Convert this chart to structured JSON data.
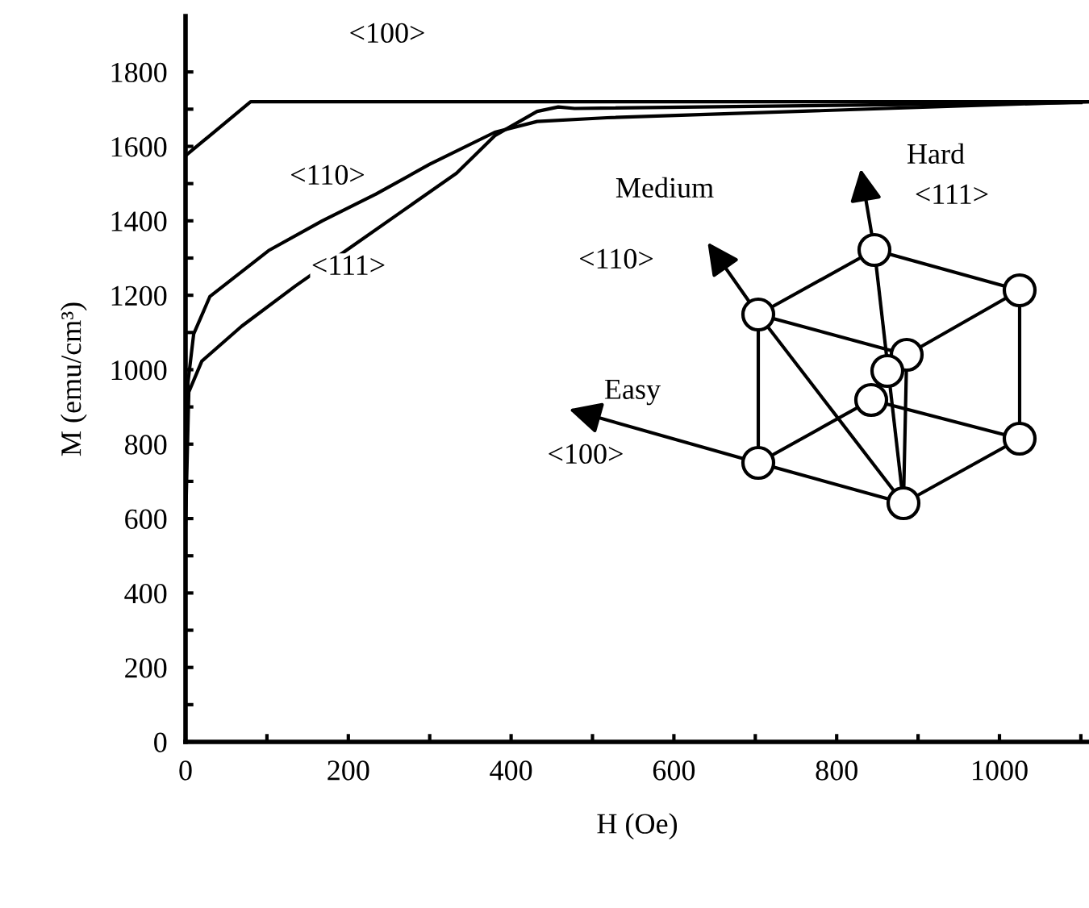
{
  "chart_data": {
    "type": "line",
    "xlabel": "H (Oe)",
    "ylabel": "M (emu/cm³)",
    "xlim": [
      0,
      1110
    ],
    "ylim": [
      0,
      1950
    ],
    "xticks": [
      0,
      {
        "value": 100,
        "label": null
      },
      200,
      {
        "value": 300,
        "label": null
      },
      400,
      {
        "value": 500,
        "label": null
      },
      600,
      {
        "value": 700,
        "label": null
      },
      800,
      {
        "value": 900,
        "label": null
      },
      1000,
      {
        "value": 1100,
        "label": null
      }
    ],
    "yticks": [
      0,
      {
        "value": 100,
        "label": null
      },
      200,
      {
        "value": 300,
        "label": null
      },
      400,
      {
        "value": 500,
        "label": null
      },
      600,
      {
        "value": 700,
        "label": null
      },
      800,
      {
        "value": 900,
        "label": null
      },
      1000,
      {
        "value": 1100,
        "label": null
      },
      1200,
      {
        "value": 1300,
        "label": null
      },
      1400,
      {
        "value": 1500,
        "label": null
      },
      1600,
      {
        "value": 1700,
        "label": null
      },
      1800
    ],
    "grid": false,
    "legend": false,
    "marker": "none",
    "line_style": "solid",
    "series": [
      {
        "color": "#000000",
        "x": [
          0,
          80,
          1110
        ],
        "values": [
          1575,
          1720,
          1720
        ]
      },
      {
        "color": "#000000",
        "x": [
          0,
          3,
          10,
          30,
          102,
          168,
          234,
          300,
          380,
          432,
          518,
          1110
        ],
        "values": [
          620,
          966,
          1096,
          1197,
          1320,
          1400,
          1472,
          1552,
          1638,
          1667,
          1677,
          1720
        ]
      },
      {
        "color": "#000000",
        "x": [
          0,
          4,
          20,
          69,
          135,
          201,
          267,
          333,
          380,
          432,
          458,
          478,
          1100
        ],
        "values": [
          580,
          940,
          1023,
          1117,
          1225,
          1326,
          1427,
          1528,
          1629,
          1694,
          1706,
          1702,
          1718
        ]
      }
    ],
    "annotations": [
      "<100>",
      "<110>",
      "<111>",
      "Medium",
      "<110>",
      "Easy",
      "<100>",
      "Hard",
      "<111>"
    ]
  }
}
